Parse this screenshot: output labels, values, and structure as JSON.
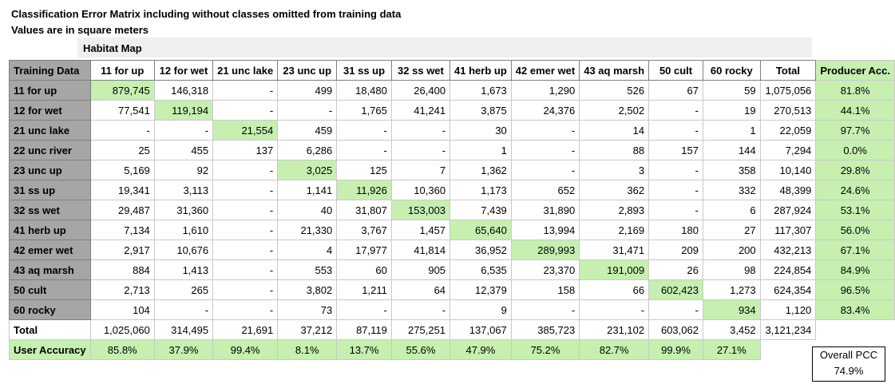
{
  "title": "Classification Error Matrix including without classes omitted from training data",
  "subtitle": "Values are in square meters",
  "habitat_map_label": "Habitat Map",
  "corner_header": "Training Data",
  "columns": [
    "11 for up",
    "12 for wet",
    "21 unc lake",
    "23 unc up",
    "31 ss up",
    "32 ss wet",
    "41 herb up",
    "42 emer wet",
    "43 aq marsh",
    "50 cult",
    "60 rocky",
    "Total",
    "Producer Acc."
  ],
  "rows": [
    {
      "label": "11 for up",
      "cells": [
        "879,745",
        "146,318",
        "-",
        "499",
        "18,480",
        "26,400",
        "1,673",
        "1,290",
        "526",
        "67",
        "59",
        "1,075,056",
        "81.8%"
      ],
      "diag": 0
    },
    {
      "label": "12 for wet",
      "cells": [
        "77,541",
        "119,194",
        "-",
        "-",
        "1,765",
        "41,241",
        "3,875",
        "24,376",
        "2,502",
        "-",
        "19",
        "270,513",
        "44.1%"
      ],
      "diag": 1
    },
    {
      "label": "21 unc lake",
      "cells": [
        "-",
        "-",
        "21,554",
        "459",
        "-",
        "-",
        "30",
        "-",
        "14",
        "-",
        "1",
        "22,059",
        "97.7%"
      ],
      "diag": 2
    },
    {
      "label": "22 unc river",
      "cells": [
        "25",
        "455",
        "137",
        "6,286",
        "-",
        "-",
        "1",
        "-",
        "88",
        "157",
        "144",
        "7,294",
        "0.0%"
      ],
      "diag": -1
    },
    {
      "label": "23 unc up",
      "cells": [
        "5,169",
        "92",
        "-",
        "3,025",
        "125",
        "7",
        "1,362",
        "-",
        "3",
        "-",
        "358",
        "10,140",
        "29.8%"
      ],
      "diag": 3
    },
    {
      "label": "31 ss up",
      "cells": [
        "19,341",
        "3,113",
        "-",
        "1,141",
        "11,926",
        "10,360",
        "1,173",
        "652",
        "362",
        "-",
        "332",
        "48,399",
        "24.6%"
      ],
      "diag": 4
    },
    {
      "label": "32 ss wet",
      "cells": [
        "29,487",
        "31,360",
        "-",
        "40",
        "31,807",
        "153,003",
        "7,439",
        "31,890",
        "2,893",
        "-",
        "6",
        "287,924",
        "53.1%"
      ],
      "diag": 5
    },
    {
      "label": "41 herb up",
      "cells": [
        "7,134",
        "1,610",
        "-",
        "21,330",
        "3,767",
        "1,457",
        "65,640",
        "13,994",
        "2,169",
        "180",
        "27",
        "117,307",
        "56.0%"
      ],
      "diag": 6
    },
    {
      "label": "42 emer wet",
      "cells": [
        "2,917",
        "10,676",
        "-",
        "4",
        "17,977",
        "41,814",
        "36,952",
        "289,993",
        "31,471",
        "209",
        "200",
        "432,213",
        "67.1%"
      ],
      "diag": 7
    },
    {
      "label": "43 aq marsh",
      "cells": [
        "884",
        "1,413",
        "-",
        "553",
        "60",
        "905",
        "6,535",
        "23,370",
        "191,009",
        "26",
        "98",
        "224,854",
        "84.9%"
      ],
      "diag": 8
    },
    {
      "label": "50 cult",
      "cells": [
        "2,713",
        "265",
        "-",
        "3,802",
        "1,211",
        "64",
        "12,379",
        "158",
        "66",
        "602,423",
        "1,273",
        "624,354",
        "96.5%"
      ],
      "diag": 9
    },
    {
      "label": "60 rocky",
      "cells": [
        "104",
        "-",
        "-",
        "73",
        "-",
        "-",
        "9",
        "-",
        "-",
        "-",
        "934",
        "1,120",
        "83.4%"
      ],
      "diag": 10
    }
  ],
  "total_row": {
    "label": "Total",
    "cells": [
      "1,025,060",
      "314,495",
      "21,691",
      "37,212",
      "87,119",
      "275,251",
      "137,067",
      "385,723",
      "231,102",
      "603,062",
      "3,452",
      "3,121,234"
    ]
  },
  "user_accuracy_row": {
    "label": "User Accuracy",
    "cells": [
      "85.8%",
      "37.9%",
      "99.4%",
      "8.1%",
      "13.7%",
      "55.6%",
      "47.9%",
      "75.2%",
      "82.7%",
      "99.9%",
      "27.1%"
    ]
  },
  "overall_pcc": {
    "label": "Overall PCC",
    "value": "74.9%"
  },
  "colors": {
    "row_header_bg": "#a6a6a6",
    "highlight_green": "#c6efb0",
    "band_gray": "#efefef"
  }
}
